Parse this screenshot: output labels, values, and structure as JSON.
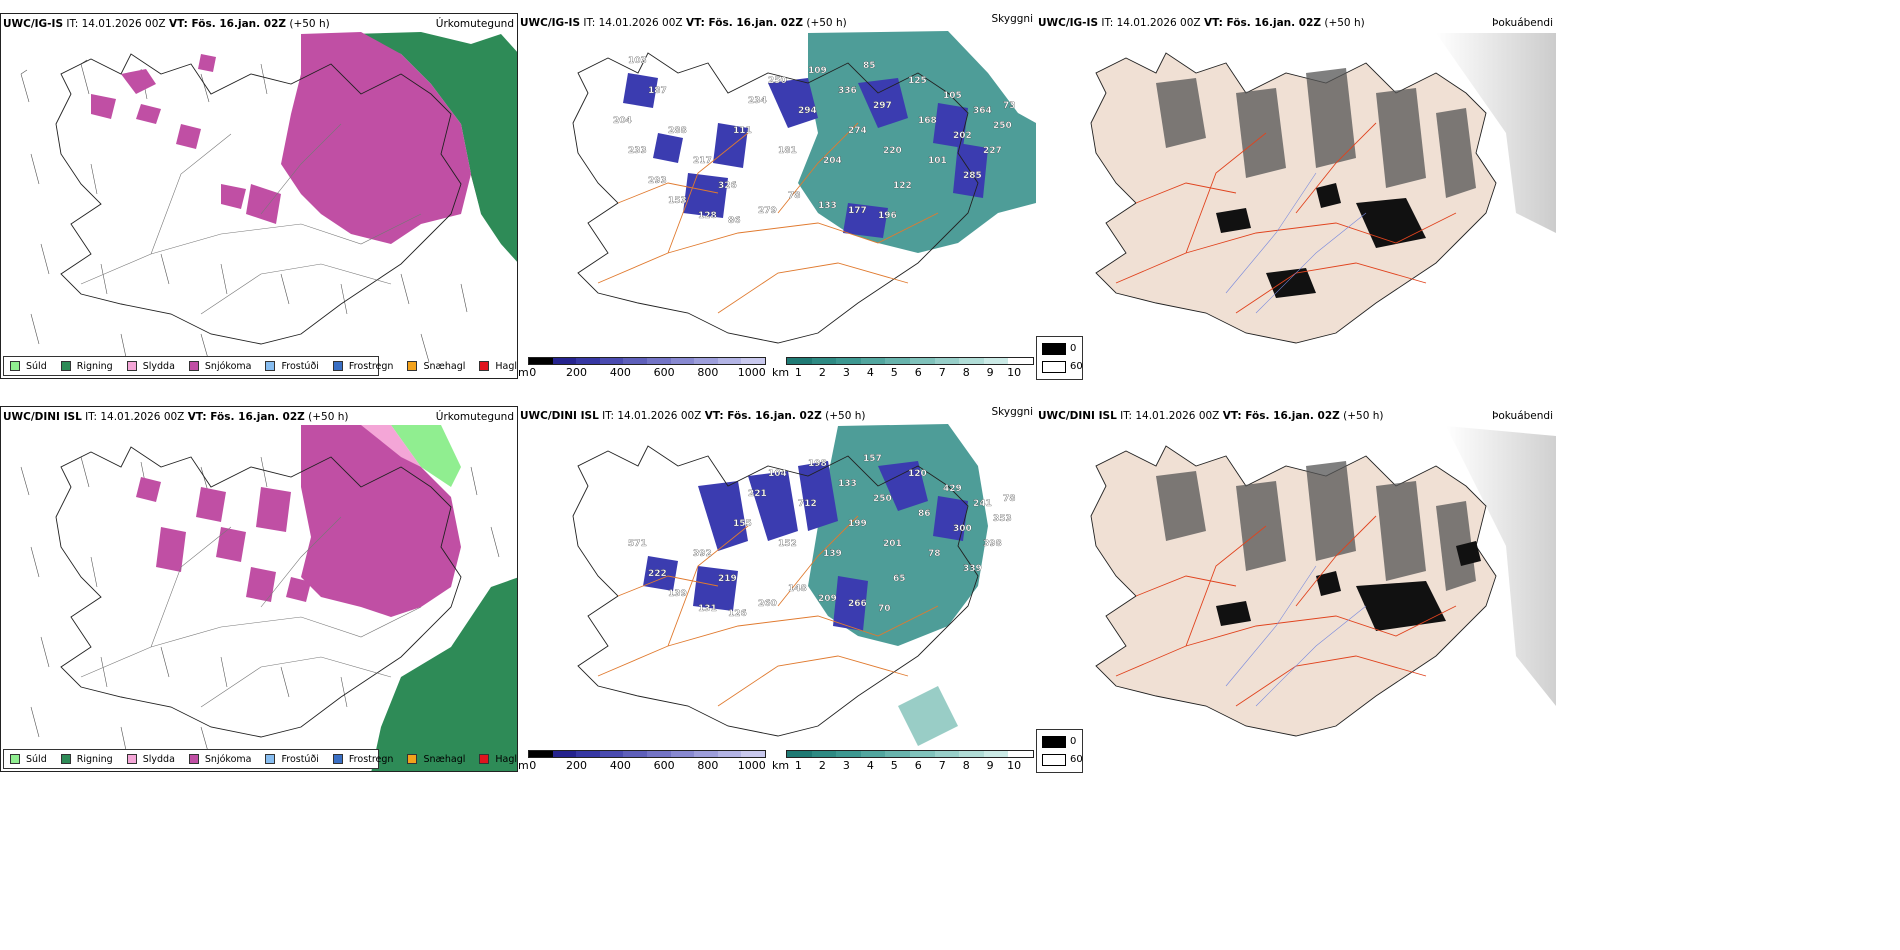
{
  "rows": [
    {
      "model": "UWC/IG-IS",
      "it_label": "IT: 14.01.2026 00Z",
      "vt_label": "VT: Fös. 16.jan. 02Z",
      "lead": "(+50 h)"
    },
    {
      "model": "UWC/DINI ISL",
      "it_label": "IT: 14.01.2026 00Z",
      "vt_label": "VT: Fös. 16.jan. 02Z",
      "lead": "(+50 h)"
    }
  ],
  "fields": {
    "precip_type": "Úrkomutegund",
    "visibility": "Skyggni",
    "fog": "Þokuábendi"
  },
  "precip_legend": [
    {
      "label": "Súld",
      "color": "#90ee90"
    },
    {
      "label": "Rigning",
      "color": "#2e8b57"
    },
    {
      "label": "Slydda",
      "color": "#f4a6d7"
    },
    {
      "label": "Snjókoma",
      "color": "#c04fa4"
    },
    {
      "label": "Frostúði",
      "color": "#87bdf0"
    },
    {
      "label": "Frostregn",
      "color": "#3a6fc4"
    },
    {
      "label": "Snæhagl",
      "color": "#f3a21b"
    },
    {
      "label": "Haglél",
      "color": "#e0141e"
    }
  ],
  "colorbar_cloud_base": {
    "unit": "m",
    "ticks": [
      "0",
      "200",
      "400",
      "600",
      "800",
      "1000"
    ],
    "colors": [
      "#000000",
      "#25238e",
      "#3637a3",
      "#4a4bb0",
      "#5e5fba",
      "#7374c6",
      "#8889d1",
      "#9d9edb",
      "#b3b4e5",
      "#c9c9ee"
    ]
  },
  "colorbar_visibility": {
    "unit": "km",
    "ticks": [
      "1",
      "2",
      "3",
      "4",
      "5",
      "6",
      "7",
      "8",
      "9",
      "10"
    ],
    "colors": [
      "#1f7a74",
      "#2e8a83",
      "#3d9891",
      "#52a69f",
      "#68b4ad",
      "#80c2bb",
      "#98cfc9",
      "#b1ddd7",
      "#cbeae6",
      "#ffffff"
    ]
  },
  "fog_legend": {
    "black_label": "0",
    "white_label": "60"
  },
  "cloud_base_labels_top": [
    "103",
    "187",
    "288",
    "217",
    "326",
    "111",
    "234",
    "250",
    "181",
    "294",
    "109",
    "204",
    "336",
    "274",
    "85",
    "297",
    "220",
    "122",
    "125",
    "168",
    "101",
    "105",
    "202",
    "285",
    "364",
    "227",
    "250",
    "73",
    "133",
    "177",
    "196",
    "78",
    "279",
    "86",
    "128",
    "153",
    "293",
    "233",
    "204"
  ],
  "cloud_base_labels_bottom": [
    "392",
    "219",
    "155",
    "221",
    "104",
    "152",
    "712",
    "198",
    "139",
    "133",
    "199",
    "157",
    "250",
    "201",
    "65",
    "120",
    "86",
    "78",
    "429",
    "300",
    "339",
    "241",
    "398",
    "353",
    "78",
    "209",
    "266",
    "70",
    "148",
    "260",
    "126",
    "131",
    "139",
    "222",
    "571"
  ],
  "colors": {
    "snow": "#c04fa4",
    "rain": "#2e8b57",
    "drizzle": "#90ee90",
    "sleet": "#f4a6d7",
    "visibility_teal": "#2f8c86",
    "cloud_base_blue": "#3b3cb0",
    "land_fog": "#f0e0d4",
    "roads_orange": "#e07a2f",
    "roads_red": "#e0431e"
  }
}
